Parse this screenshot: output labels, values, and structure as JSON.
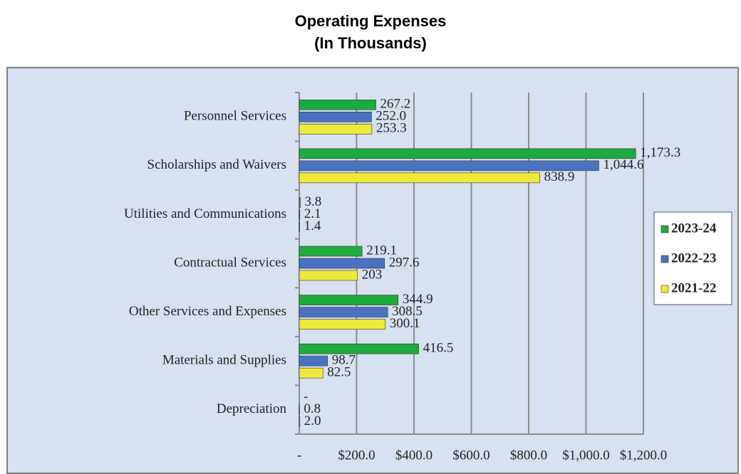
{
  "chart_data": {
    "type": "hbar",
    "title": "Operating Expenses",
    "subtitle": "(In Thousands)",
    "categories": [
      "Personnel Services",
      "Scholarships and Waivers",
      "Utilities and Communications",
      "Contractual Services",
      "Other Services and Expenses",
      "Materials and Supplies",
      "Depreciation"
    ],
    "series": [
      {
        "name": "2023-24",
        "color": "#1daa3e",
        "values": [
          267.2,
          1173.3,
          3.8,
          219.1,
          344.9,
          416.5,
          0
        ],
        "value_labels": [
          "267.2",
          "1,173.3",
          "3.8",
          "219.1",
          "344.9",
          "416.5",
          "-"
        ]
      },
      {
        "name": "2022-23",
        "color": "#4a72c0",
        "values": [
          252.0,
          1044.6,
          2.1,
          297.6,
          308.5,
          98.7,
          0.8
        ],
        "value_labels": [
          "252.0",
          "1,044.6",
          "2.1",
          "297.6",
          "308.5",
          "98.7",
          "0.8"
        ]
      },
      {
        "name": "2021-22",
        "color": "#eeea3a",
        "values": [
          253.3,
          838.9,
          1.4,
          203,
          300.1,
          82.5,
          2.0
        ],
        "value_labels": [
          "253.3",
          "838.9",
          "1.4",
          "203",
          "300.1",
          "82.5",
          "2.0"
        ]
      }
    ],
    "xlim": [
      0,
      1200
    ],
    "xticks": [
      {
        "value": 0,
        "label": "-"
      },
      {
        "value": 200,
        "label": "$200.0"
      },
      {
        "value": 400,
        "label": "$400.0"
      },
      {
        "value": 600,
        "label": "$600.0"
      },
      {
        "value": 800,
        "label": "$800.0"
      },
      {
        "value": 1000,
        "label": "$1,000.0"
      },
      {
        "value": 1200,
        "label": "$1,200.0"
      }
    ],
    "grid": true,
    "legend": "right"
  }
}
